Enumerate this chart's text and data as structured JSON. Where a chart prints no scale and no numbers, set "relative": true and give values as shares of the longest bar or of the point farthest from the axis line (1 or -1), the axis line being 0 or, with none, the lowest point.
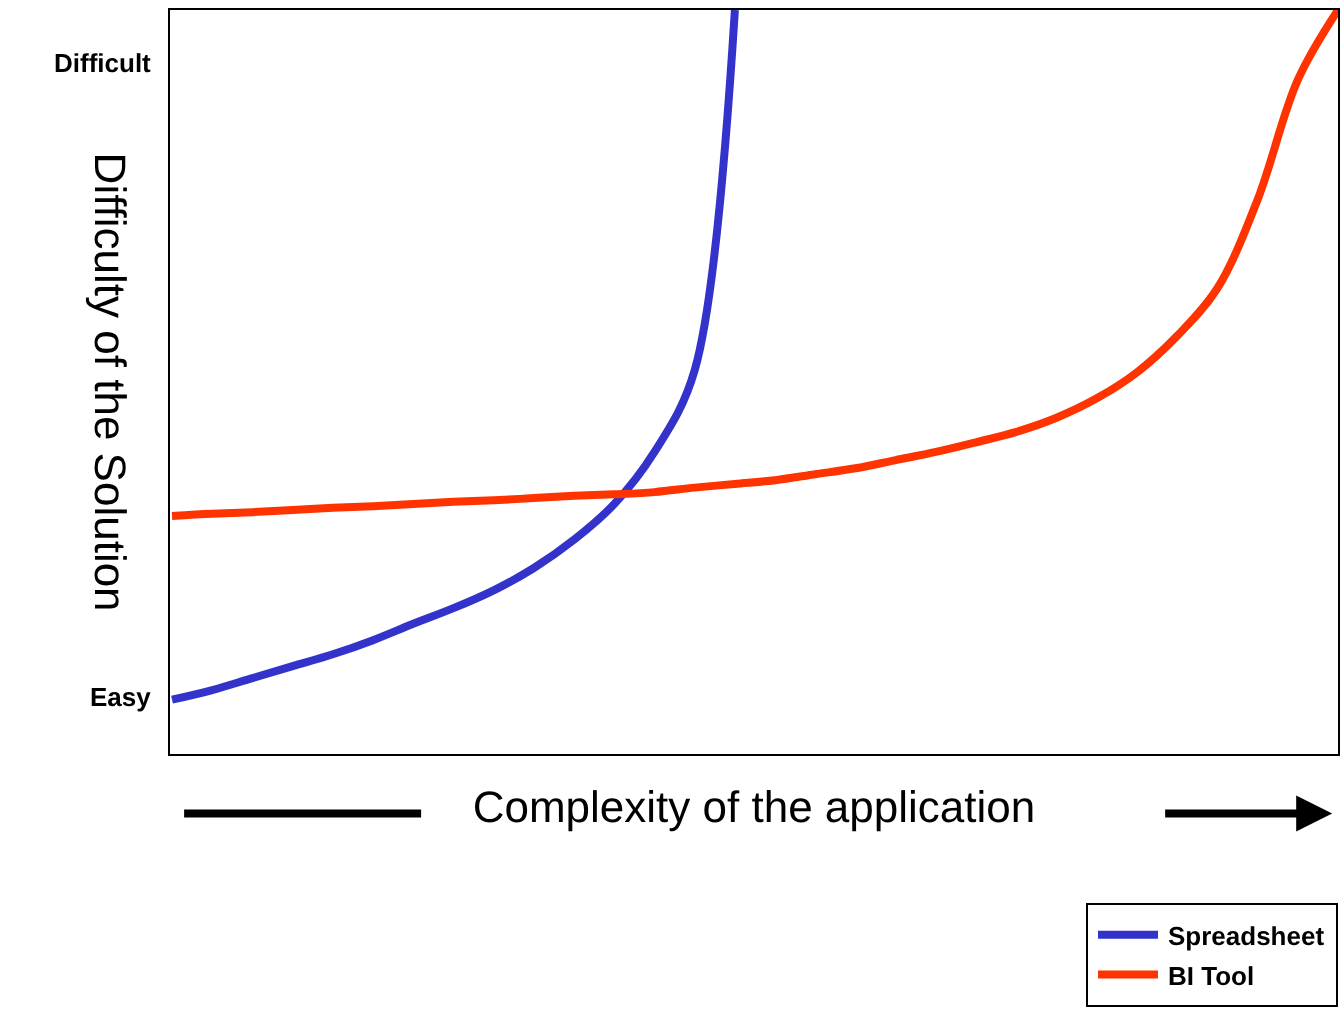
{
  "chart_data": {
    "type": "line",
    "relative": true,
    "xlabel": "Complexity of the application",
    "ylabel": "Difficulty of the Solution",
    "annotations": [
      "Difficult",
      "Easy"
    ],
    "categories": [
      null,
      null,
      null,
      null,
      null,
      null,
      null,
      null,
      null,
      null,
      null,
      null,
      null,
      null,
      null,
      null,
      null,
      null,
      null,
      null,
      null,
      null,
      null,
      null,
      null,
      null,
      null,
      null,
      null,
      null
    ],
    "series": [
      {
        "name": "Spreadsheet",
        "color": "#3333cc",
        "values": [
          0.073,
          0.086,
          0.102,
          0.118,
          0.134,
          0.153,
          0.175,
          0.196,
          0.22,
          0.25,
          0.288,
          0.336,
          0.406,
          0.516,
          1.0,
          null,
          null,
          null,
          null,
          null,
          null,
          null,
          null,
          null,
          null,
          null,
          null,
          null,
          null,
          null
        ]
      },
      {
        "name": "BI Tool",
        "color": "#ff3300",
        "values": [
          0.32,
          0.323,
          0.325,
          0.328,
          0.331,
          0.333,
          0.336,
          0.339,
          0.341,
          0.344,
          0.347,
          0.349,
          0.352,
          0.358,
          0.363,
          0.368,
          0.376,
          0.384,
          0.395,
          0.406,
          0.419,
          0.433,
          0.452,
          0.478,
          0.513,
          0.562,
          0.626,
          0.745,
          0.906,
          1.0
        ]
      }
    ],
    "legend": "bottom right",
    "marker": "none",
    "line_style": "solid",
    "tick_labels": false
  }
}
